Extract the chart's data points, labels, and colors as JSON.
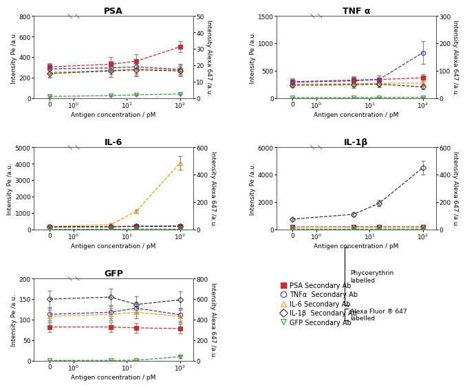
{
  "panels": [
    {
      "title": "PSA",
      "left_ylim": [
        0,
        800
      ],
      "right_ylim": [
        0,
        50
      ],
      "left_yticks": [
        0,
        200,
        400,
        600,
        800
      ],
      "right_yticks": [
        0,
        10,
        20,
        30,
        40,
        50
      ],
      "series": [
        {
          "name": "PSA Secondary Ab",
          "color": "#d62728",
          "marker": "s",
          "fillstyle": "full",
          "axis": "left",
          "x": [
            0,
            5,
            15,
            100
          ],
          "y": [
            305,
            330,
            360,
            500
          ],
          "yerr": [
            35,
            70,
            65,
            55
          ]
        },
        {
          "name": "TNFa Secondary Ab",
          "color": "#3333cc",
          "marker": "o",
          "fillstyle": "none",
          "axis": "left",
          "x": [
            0,
            5,
            15,
            100
          ],
          "y": [
            285,
            295,
            305,
            280
          ],
          "yerr": [
            45,
            65,
            65,
            45
          ]
        },
        {
          "name": "IL6 Secondary Ab",
          "color": "#ff9900",
          "marker": "^",
          "fillstyle": "none",
          "axis": "left",
          "x": [
            0,
            5,
            15,
            100
          ],
          "y": [
            250,
            270,
            285,
            275
          ],
          "yerr": [
            45,
            65,
            65,
            55
          ]
        },
        {
          "name": "IL1b Secondary Ab",
          "color": "#333333",
          "marker": "D",
          "fillstyle": "none",
          "axis": "left",
          "x": [
            0,
            5,
            15,
            100
          ],
          "y": [
            240,
            265,
            275,
            265
          ],
          "yerr": [
            40,
            60,
            60,
            50
          ]
        },
        {
          "name": "GFP Secondary Ab",
          "color": "#2ca02c",
          "marker": "v",
          "fillstyle": "none",
          "axis": "right",
          "x": [
            0,
            5,
            15,
            100
          ],
          "y": [
            1,
            1.5,
            2,
            2.5
          ],
          "yerr": [
            0.5,
            0.5,
            0.5,
            0.5
          ]
        }
      ]
    },
    {
      "title": "TNF α",
      "left_ylim": [
        0,
        1500
      ],
      "right_ylim": [
        0,
        300
      ],
      "left_yticks": [
        0,
        500,
        1000,
        1500
      ],
      "right_yticks": [
        0,
        100,
        200,
        300
      ],
      "series": [
        {
          "name": "PSA Secondary Ab",
          "color": "#d62728",
          "marker": "s",
          "fillstyle": "full",
          "axis": "left",
          "x": [
            0,
            5,
            15,
            100
          ],
          "y": [
            300,
            330,
            340,
            370
          ],
          "yerr": [
            55,
            65,
            65,
            65
          ]
        },
        {
          "name": "TNFa Secondary Ab",
          "color": "#3333cc",
          "marker": "o",
          "fillstyle": "none",
          "axis": "left",
          "x": [
            0,
            5,
            15,
            100
          ],
          "y": [
            290,
            315,
            340,
            830
          ],
          "yerr": [
            55,
            65,
            70,
            210
          ]
        },
        {
          "name": "IL6 Secondary Ab",
          "color": "#ff9900",
          "marker": "^",
          "fillstyle": "none",
          "axis": "left",
          "x": [
            0,
            5,
            15,
            100
          ],
          "y": [
            255,
            265,
            270,
            275
          ],
          "yerr": [
            45,
            55,
            55,
            55
          ]
        },
        {
          "name": "IL1b Secondary Ab",
          "color": "#333333",
          "marker": "D",
          "fillstyle": "none",
          "axis": "left",
          "x": [
            0,
            5,
            15,
            100
          ],
          "y": [
            235,
            245,
            255,
            205
          ],
          "yerr": [
            40,
            55,
            55,
            50
          ]
        },
        {
          "name": "GFP Secondary Ab",
          "color": "#2ca02c",
          "marker": "v",
          "fillstyle": "none",
          "axis": "right",
          "x": [
            0,
            5,
            15,
            100
          ],
          "y": [
            2,
            2,
            2.5,
            3
          ],
          "yerr": [
            0.5,
            0.5,
            0.5,
            0.5
          ]
        }
      ]
    },
    {
      "title": "IL-6",
      "left_ylim": [
        0,
        5000
      ],
      "right_ylim": [
        0,
        600
      ],
      "left_yticks": [
        0,
        1000,
        2000,
        3000,
        4000,
        5000
      ],
      "right_yticks": [
        0,
        200,
        400,
        600
      ],
      "series": [
        {
          "name": "PSA Secondary Ab",
          "color": "#d62728",
          "marker": "s",
          "fillstyle": "full",
          "axis": "left",
          "x": [
            0,
            5,
            15,
            100
          ],
          "y": [
            160,
            175,
            185,
            185
          ],
          "yerr": [
            25,
            25,
            25,
            25
          ]
        },
        {
          "name": "TNFa Secondary Ab",
          "color": "#3333cc",
          "marker": "o",
          "fillstyle": "none",
          "axis": "left",
          "x": [
            0,
            5,
            15,
            100
          ],
          "y": [
            155,
            165,
            185,
            210
          ],
          "yerr": [
            25,
            25,
            25,
            25
          ]
        },
        {
          "name": "IL6 Secondary Ab",
          "color": "#ff9900",
          "marker": "^",
          "fillstyle": "none",
          "axis": "left",
          "x": [
            0,
            5,
            15,
            100
          ],
          "y": [
            175,
            290,
            1100,
            4050
          ],
          "yerr": [
            25,
            60,
            120,
            430
          ]
        },
        {
          "name": "IL1b Secondary Ab",
          "color": "#333333",
          "marker": "D",
          "fillstyle": "none",
          "axis": "left",
          "x": [
            0,
            5,
            15,
            100
          ],
          "y": [
            148,
            165,
            180,
            190
          ],
          "yerr": [
            22,
            22,
            22,
            22
          ]
        },
        {
          "name": "GFP Secondary Ab",
          "color": "#2ca02c",
          "marker": "v",
          "fillstyle": "none",
          "axis": "right",
          "x": [
            0,
            5,
            15,
            100
          ],
          "y": [
            1,
            1,
            1.5,
            2
          ],
          "yerr": [
            0.5,
            0.5,
            0.5,
            0.5
          ]
        }
      ]
    },
    {
      "title": "IL-1β",
      "left_ylim": [
        0,
        6000
      ],
      "right_ylim": [
        0,
        600
      ],
      "left_yticks": [
        0,
        2000,
        4000,
        6000
      ],
      "right_yticks": [
        0,
        200,
        400,
        600
      ],
      "series": [
        {
          "name": "PSA Secondary Ab",
          "color": "#d62728",
          "marker": "s",
          "fillstyle": "full",
          "axis": "left",
          "x": [
            0,
            5,
            15,
            100
          ],
          "y": [
            165,
            180,
            190,
            190
          ],
          "yerr": [
            25,
            25,
            25,
            25
          ]
        },
        {
          "name": "TNFa Secondary Ab",
          "color": "#3333cc",
          "marker": "o",
          "fillstyle": "none",
          "axis": "left",
          "x": [
            0,
            5,
            15,
            100
          ],
          "y": [
            160,
            175,
            185,
            195
          ],
          "yerr": [
            25,
            25,
            25,
            25
          ]
        },
        {
          "name": "IL6 Secondary Ab",
          "color": "#ff9900",
          "marker": "^",
          "fillstyle": "none",
          "axis": "left",
          "x": [
            0,
            5,
            15,
            100
          ],
          "y": [
            155,
            170,
            180,
            190
          ],
          "yerr": [
            25,
            25,
            25,
            25
          ]
        },
        {
          "name": "IL1b Secondary Ab",
          "color": "#333333",
          "marker": "D",
          "fillstyle": "none",
          "axis": "left",
          "x": [
            0,
            5,
            15,
            100
          ],
          "y": [
            750,
            1100,
            1900,
            4500
          ],
          "yerr": [
            100,
            150,
            230,
            500
          ]
        },
        {
          "name": "GFP Secondary Ab",
          "color": "#2ca02c",
          "marker": "v",
          "fillstyle": "none",
          "axis": "right",
          "x": [
            0,
            5,
            15,
            100
          ],
          "y": [
            2,
            2,
            3,
            3
          ],
          "yerr": [
            0.5,
            0.5,
            0.5,
            0.5
          ]
        }
      ]
    },
    {
      "title": "GFP",
      "left_ylim": [
        0,
        200
      ],
      "right_ylim": [
        0,
        800
      ],
      "left_yticks": [
        0,
        50,
        100,
        150,
        200
      ],
      "right_yticks": [
        0,
        200,
        400,
        600,
        800
      ],
      "series": [
        {
          "name": "PSA Secondary Ab",
          "color": "#d62728",
          "marker": "s",
          "fillstyle": "full",
          "axis": "left",
          "x": [
            0,
            5,
            15,
            100
          ],
          "y": [
            82,
            82,
            80,
            78
          ],
          "yerr": [
            12,
            12,
            12,
            12
          ]
        },
        {
          "name": "TNFa Secondary Ab",
          "color": "#3333cc",
          "marker": "o",
          "fillstyle": "none",
          "axis": "left",
          "x": [
            0,
            5,
            15,
            100
          ],
          "y": [
            113,
            118,
            128,
            112
          ],
          "yerr": [
            15,
            15,
            15,
            15
          ]
        },
        {
          "name": "IL6 Secondary Ab",
          "color": "#ff9900",
          "marker": "^",
          "fillstyle": "none",
          "axis": "left",
          "x": [
            0,
            5,
            15,
            100
          ],
          "y": [
            108,
            113,
            118,
            108
          ],
          "yerr": [
            15,
            15,
            15,
            15
          ]
        },
        {
          "name": "IL1b Secondary Ab",
          "color": "#333333",
          "marker": "D",
          "fillstyle": "none",
          "axis": "left",
          "x": [
            0,
            5,
            15,
            100
          ],
          "y": [
            150,
            155,
            137,
            148
          ],
          "yerr": [
            20,
            20,
            20,
            20
          ]
        },
        {
          "name": "GFP Secondary Ab",
          "color": "#2ca02c",
          "marker": "v",
          "fillstyle": "none",
          "axis": "right",
          "x": [
            0,
            5,
            15,
            100
          ],
          "y": [
            2,
            3,
            4,
            38
          ],
          "yerr": [
            1,
            1,
            2,
            12
          ]
        }
      ]
    }
  ],
  "legend_entries": [
    {
      "label": "PSA Secondary Ab",
      "color": "#d62728",
      "marker": "s",
      "fillstyle": "full"
    },
    {
      "label": "TNFα  Secondary Ab",
      "color": "#3333cc",
      "marker": "o",
      "fillstyle": "none"
    },
    {
      "label": "IL-6 Secondary Ab",
      "color": "#ff9900",
      "marker": "^",
      "fillstyle": "none"
    },
    {
      "label": "IL-1β  Secondary Ab",
      "color": "#333333",
      "marker": "D",
      "fillstyle": "none"
    },
    {
      "label": "GFP Secondary Ab",
      "color": "#2ca02c",
      "marker": "v",
      "fillstyle": "none"
    }
  ],
  "xlabel": "Antigen concentration / pM",
  "left_ylabel": "Intensity Pe /a.u.",
  "right_ylabel": "Intensity Alexa 647 /a.u.",
  "background_color": "#ffffff"
}
